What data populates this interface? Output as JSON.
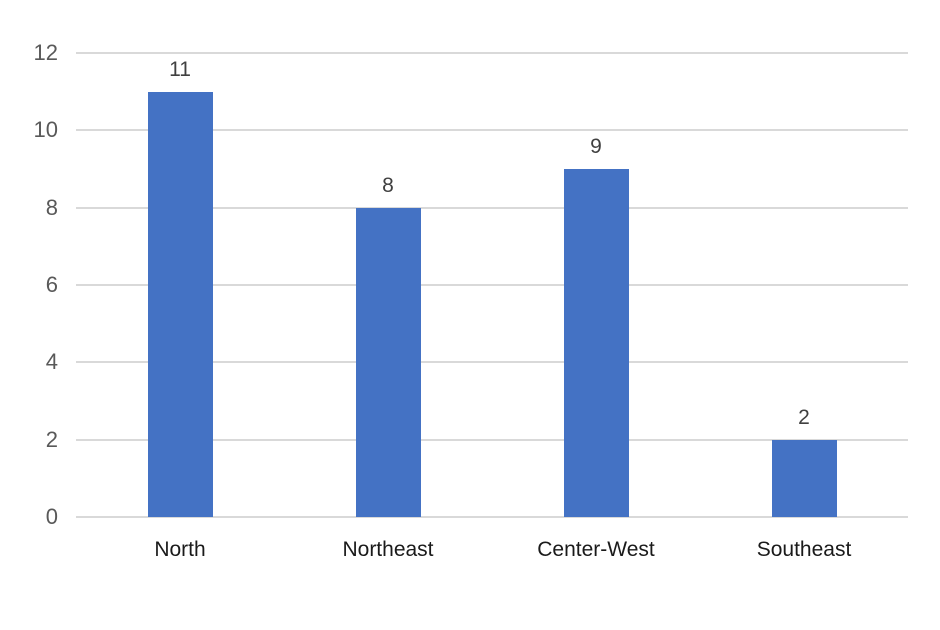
{
  "chart_data": {
    "type": "bar",
    "title": "",
    "xlabel": "",
    "ylabel": "",
    "categories": [
      "North",
      "Northeast",
      "Center-West",
      "Southeast"
    ],
    "values": [
      11,
      8,
      9,
      2
    ],
    "value_labels": [
      "11",
      "8",
      "9",
      "2"
    ],
    "ylim": [
      0,
      12
    ],
    "yticks": [
      0,
      2,
      4,
      6,
      8,
      10,
      12
    ],
    "ytick_labels": [
      "0",
      "2",
      "4",
      "6",
      "8",
      "10",
      "12"
    ],
    "grid": "horizontal",
    "legend": "none",
    "colors": {
      "bar": "#4472C4",
      "gridline": "#D9D9D9",
      "ytick_text": "#595959",
      "value_label_text": "#404040",
      "category_text": "#1A1A1A",
      "background": "#FFFFFF"
    }
  }
}
